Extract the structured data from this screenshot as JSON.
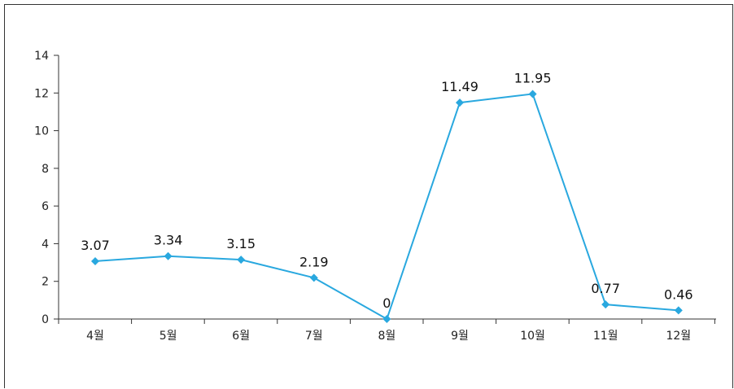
{
  "chart_data": {
    "type": "line",
    "categories": [
      "4월",
      "5월",
      "6월",
      "7월",
      "8월",
      "9월",
      "10월",
      "11월",
      "12월"
    ],
    "series": [
      {
        "values": [
          3.07,
          3.34,
          3.15,
          2.19,
          0,
          11.49,
          11.95,
          0.77,
          0.46
        ],
        "data_labels": [
          "3.07",
          "3.34",
          "3.15",
          "2.19",
          "0",
          "11.49",
          "11.95",
          "0.77",
          "0.46"
        ]
      }
    ],
    "ylim": [
      0,
      14
    ],
    "yticks": [
      "0",
      "2",
      "4",
      "6",
      "8",
      "10",
      "12",
      "14"
    ],
    "grid": false,
    "colors": {
      "line": "#29a8df",
      "axis": "#333333"
    }
  }
}
